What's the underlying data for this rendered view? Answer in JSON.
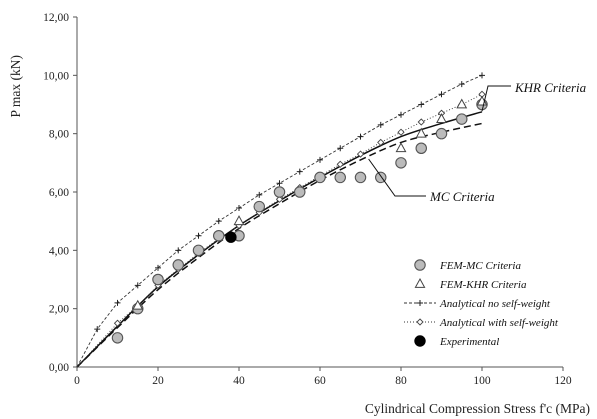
{
  "chart_data": {
    "type": "scatter",
    "title": "",
    "xlabel": "Cylindrical Compression Stress f'c (MPa)",
    "ylabel": "P max (kN)",
    "xlim": [
      0,
      120
    ],
    "ylim": [
      0,
      12
    ],
    "x_ticks": [
      "0",
      "20",
      "40",
      "60",
      "80",
      "100",
      "120"
    ],
    "y_ticks": [
      "0,00",
      "2,00",
      "4,00",
      "6,00",
      "8,00",
      "10,00",
      "12,00"
    ],
    "grid": false,
    "legend_position": "bottom-right",
    "colors": {
      "axis": "#555555",
      "series": "#333333",
      "marker_fill": "#bbbbbb",
      "experimental": "#000000"
    },
    "series": [
      {
        "name": "FEM-MC Criteria",
        "kind": "marker",
        "marker": "circle-open",
        "x": [
          10,
          15,
          20,
          25,
          30,
          35,
          40,
          45,
          50,
          55,
          60,
          65,
          70,
          75,
          80,
          85,
          90,
          95,
          100
        ],
        "y": [
          1.0,
          2.0,
          3.0,
          3.5,
          4.0,
          4.5,
          4.5,
          5.5,
          6.0,
          6.0,
          6.5,
          6.5,
          6.5,
          6.5,
          7.0,
          7.5,
          8.0,
          8.5,
          9.0
        ]
      },
      {
        "name": "FEM-KHR Criteria",
        "kind": "marker",
        "marker": "triangle-open",
        "x": [
          15,
          40,
          80,
          85,
          90,
          95,
          100
        ],
        "y": [
          2.1,
          5.0,
          7.5,
          8.0,
          8.5,
          9.0,
          9.1
        ]
      },
      {
        "name": "Analytical no self-weight",
        "kind": "line-marker",
        "marker": "plus",
        "dash": "3,2",
        "x": [
          0,
          5,
          10,
          15,
          20,
          25,
          30,
          35,
          40,
          45,
          50,
          55,
          60,
          65,
          70,
          75,
          80,
          85,
          90,
          95,
          100
        ],
        "y": [
          0,
          1.3,
          2.2,
          2.8,
          3.4,
          4.0,
          4.5,
          5.0,
          5.45,
          5.9,
          6.3,
          6.7,
          7.1,
          7.5,
          7.9,
          8.3,
          8.65,
          9.0,
          9.35,
          9.7,
          10.0
        ]
      },
      {
        "name": "Analytical with self-weight",
        "kind": "line-marker",
        "marker": "diamond",
        "dash": "1,2",
        "x": [
          0,
          10,
          15,
          20,
          25,
          30,
          35,
          40,
          45,
          50,
          55,
          60,
          65,
          70,
          75,
          80,
          85,
          90,
          95,
          100
        ],
        "y": [
          0,
          1.5,
          2.1,
          2.8,
          3.35,
          3.9,
          4.4,
          4.85,
          5.3,
          5.75,
          6.15,
          6.55,
          6.95,
          7.3,
          7.7,
          8.05,
          8.4,
          8.7,
          9.0,
          9.35
        ]
      },
      {
        "name": "Experimental",
        "kind": "marker",
        "marker": "circle-filled",
        "x": [
          38
        ],
        "y": [
          4.45
        ]
      },
      {
        "name": "KHR Criteria",
        "kind": "curve",
        "dash": "",
        "x": [
          0,
          10,
          20,
          30,
          40,
          50,
          60,
          70,
          80,
          90,
          100
        ],
        "y": [
          0,
          1.4,
          2.75,
          3.85,
          4.85,
          5.7,
          6.5,
          7.25,
          7.9,
          8.35,
          8.75
        ]
      },
      {
        "name": "MC Criteria",
        "kind": "curve",
        "dash": "7,4",
        "x": [
          0,
          10,
          20,
          30,
          40,
          50,
          60,
          70,
          80,
          90,
          100
        ],
        "y": [
          0,
          1.35,
          2.65,
          3.75,
          4.75,
          5.6,
          6.4,
          7.1,
          7.7,
          8.05,
          8.35
        ]
      }
    ],
    "annotations": [
      {
        "text": "KHR Criteria",
        "points_to": [
          100,
          8.7
        ]
      },
      {
        "text": "MC Criteria",
        "points_to": [
          72,
          7.2
        ]
      }
    ]
  }
}
